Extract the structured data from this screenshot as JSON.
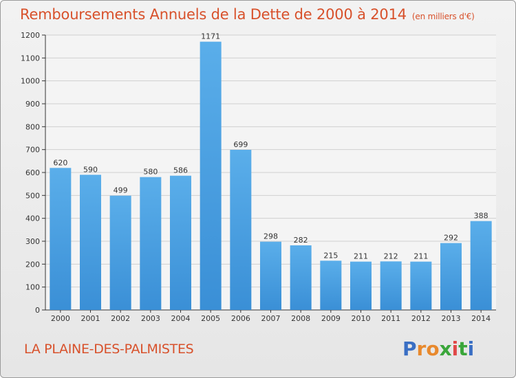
{
  "chart_data": {
    "type": "bar",
    "title": "Remboursements Annuels de la Dette de 2000 à 2014",
    "unit_label": "(en milliers d'€)",
    "categories": [
      "2000",
      "2001",
      "2002",
      "2003",
      "2004",
      "2005",
      "2006",
      "2007",
      "2008",
      "2009",
      "2010",
      "2011",
      "2012",
      "2013",
      "2014"
    ],
    "values": [
      620,
      590,
      499,
      580,
      586,
      1171,
      699,
      298,
      282,
      215,
      211,
      212,
      211,
      292,
      388
    ],
    "ylim": [
      0,
      1200
    ],
    "yticks": [
      0,
      100,
      200,
      300,
      400,
      500,
      600,
      700,
      800,
      900,
      1000,
      1100,
      1200
    ],
    "grid": true,
    "bar_color": "#3a8fd6",
    "xlabel": "",
    "ylabel": ""
  },
  "footer": {
    "commune": "LA PLAINE-DES-PALMISTES",
    "logo": [
      "P",
      "r",
      "o",
      "x",
      "i",
      "t",
      "i"
    ]
  },
  "colors": {
    "accent": "#d8512b",
    "grid": "#d0d0d0"
  }
}
